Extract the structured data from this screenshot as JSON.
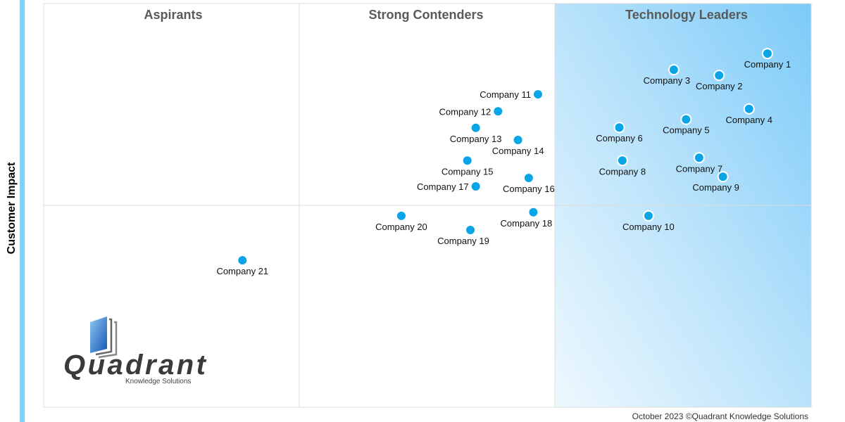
{
  "chart_data": {
    "type": "scatter",
    "title": "",
    "xlabel": "",
    "ylabel": "Customer Impact",
    "xlim": [
      0,
      100
    ],
    "ylim": [
      0,
      100
    ],
    "grid": false,
    "quadrants": [
      "Aspirants",
      "Strong Contenders",
      "Technology Leaders"
    ],
    "colors": {
      "point": "#0aa5e6",
      "accent_bar": "#86cff8",
      "leader_gradient_dark": "#7ccbf8",
      "leader_gradient_light": "#eef8fe"
    },
    "points": [
      {
        "label": "Company 1",
        "x": 94.3,
        "y": 87.6,
        "label_position": "below"
      },
      {
        "label": "Company 2",
        "x": 88.0,
        "y": 82.2,
        "label_position": "below"
      },
      {
        "label": "Company 3",
        "x": 82.1,
        "y": 83.6,
        "label_position": "below-left"
      },
      {
        "label": "Company 4",
        "x": 91.9,
        "y": 73.9,
        "label_position": "below"
      },
      {
        "label": "Company 5",
        "x": 83.7,
        "y": 71.3,
        "label_position": "below"
      },
      {
        "label": "Company 6",
        "x": 75.0,
        "y": 69.3,
        "label_position": "below"
      },
      {
        "label": "Company 7",
        "x": 85.4,
        "y": 61.8,
        "label_position": "below"
      },
      {
        "label": "Company 8",
        "x": 75.4,
        "y": 61.1,
        "label_position": "below"
      },
      {
        "label": "Company 9",
        "x": 88.5,
        "y": 57.1,
        "label_position": "below-left"
      },
      {
        "label": "Company 10",
        "x": 78.8,
        "y": 47.4,
        "label_position": "below"
      },
      {
        "label": "Company 11",
        "x": 64.4,
        "y": 77.5,
        "label_position": "left"
      },
      {
        "label": "Company 12",
        "x": 59.2,
        "y": 73.3,
        "label_position": "left"
      },
      {
        "label": "Company 13",
        "x": 56.3,
        "y": 69.2,
        "label_position": "below"
      },
      {
        "label": "Company 14",
        "x": 61.8,
        "y": 66.2,
        "label_position": "below"
      },
      {
        "label": "Company 15",
        "x": 55.2,
        "y": 61.1,
        "label_position": "below"
      },
      {
        "label": "Company 16",
        "x": 63.2,
        "y": 56.8,
        "label_position": "below"
      },
      {
        "label": "Company 17",
        "x": 56.3,
        "y": 54.7,
        "label_position": "left"
      },
      {
        "label": "Company 18",
        "x": 63.8,
        "y": 48.3,
        "label_position": "below-left"
      },
      {
        "label": "Company 19",
        "x": 55.6,
        "y": 43.9,
        "label_position": "below-left"
      },
      {
        "label": "Company 20",
        "x": 46.6,
        "y": 47.4,
        "label_position": "below"
      },
      {
        "label": "Company 21",
        "x": 25.9,
        "y": 36.4,
        "label_position": "below"
      }
    ]
  },
  "footer": "October 2023 ©Quadrant Knowledge Solutions",
  "logo": {
    "name": "Quadrant",
    "tagline": "Knowledge Solutions"
  }
}
